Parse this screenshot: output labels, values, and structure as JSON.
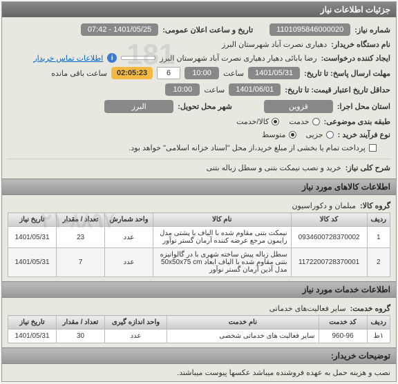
{
  "header": {
    "title": "جزئیات اطلاعات نیاز"
  },
  "info": {
    "need_no_label": "شماره نیاز:",
    "need_no": "1101095846000020",
    "announce_label": "تاریخ و ساعت اعلان عمومی:",
    "announce_value": "1401/05/25 - 07:42",
    "buyer_org_label": "نام دستگاه خریدار:",
    "buyer_org": "دهیاری نصرت آباد شهرستان البرز",
    "requester_label": "ایجاد کننده درخواست:",
    "requester": "رضا بابائی دهیار دهیاری نصرت آباد شهرستان البرز",
    "contact_link": "اطلاعات تماس خریدار",
    "deadline_label": "مهلت ارسال پاسخ: تا تاریخ:",
    "deadline_date": "1401/05/31",
    "time_label": "ساعت",
    "deadline_time": "10:00",
    "days_left": "6",
    "timer": "02:05:23",
    "remain_label": "ساعت باقی مانده",
    "min_valid_label": "حداقل تاریخ اعتبار قیمت: تا تاریخ:",
    "min_valid_date": "1401/06/01",
    "min_valid_time": "10:00",
    "exec_province_label": "استان محل اجرا:",
    "exec_province": "قزوین",
    "delivery_city_label": "شهر محل تحویل:",
    "delivery_city": "البرز",
    "budget_class_label": "طبقه بندی موضوعی:",
    "budget_opts": [
      "خدمت",
      "کالا/خدمت"
    ],
    "budget_selected_index": 1,
    "process_label": "نوع فرآیند خرید :",
    "process_opts": [
      "جزیی",
      "متوسط"
    ],
    "process_selected_index": 1,
    "payment_note_label": "",
    "payment_note": "پرداخت تمام یا بخشی از مبلغ خرید،از محل \"اسناد خزانه اسلامی\" خواهد بود.",
    "desc_title_label": "شرح کلی نیاز:",
    "desc_title": "خرید و نصب نیمکت بتنی و سطل زباله بتنی"
  },
  "goods_section": {
    "header": "اطلاعات کالاهای مورد نیاز",
    "group_label": "گروه کالا:",
    "group_value": "مبلمان و دکوراسیون",
    "cols": [
      "ردیف",
      "کد کالا",
      "نام کالا",
      "واحد شمارش",
      "تعداد / مقدار",
      "تاریخ نیاز"
    ],
    "rows": [
      [
        "1",
        "0934600728370002",
        "نیمکت بتنی مقاوم شده با الیاف با پشتی مدل رایمون مرجع عرضه کننده آرمان گستر نوآور",
        "عدد",
        "23",
        "1401/05/31"
      ],
      [
        "2",
        "1172200728370001",
        "سطل زباله پیش ساخته شهری با در گالوانیزه بتنی مقاوم شده با الیاف ابعاد 50x50x75 cm مدل آذین آرمان گستر نوآور",
        "عدد",
        "7",
        "1401/05/31"
      ]
    ]
  },
  "services_section": {
    "header": "اطلاعات خدمات مورد نیاز",
    "group_label": "گروه خدمت:",
    "group_value": "سایر فعالیت‌های خدماتی",
    "cols": [
      "ردیف",
      "کد خدمت",
      "نام خدمت",
      "واحد اندازه گیری",
      "تعداد / مقدار",
      "تاریخ نیاز"
    ],
    "rows": [
      [
        "۱ط",
        "960-96",
        "سایر فعالیت های خدماتی شخصی",
        "عدد",
        "30",
        "1401/05/31"
      ]
    ]
  },
  "buyer_note": {
    "header": "توضیحات خریدار:",
    "text": "نصب و هزینه حمل به عهده فروشنده میباشد عکسها پیوست میباشند."
  },
  "watermarks": {
    "wm1": "181",
    "wm2": "۰۲۱-۸۸۹۷"
  }
}
